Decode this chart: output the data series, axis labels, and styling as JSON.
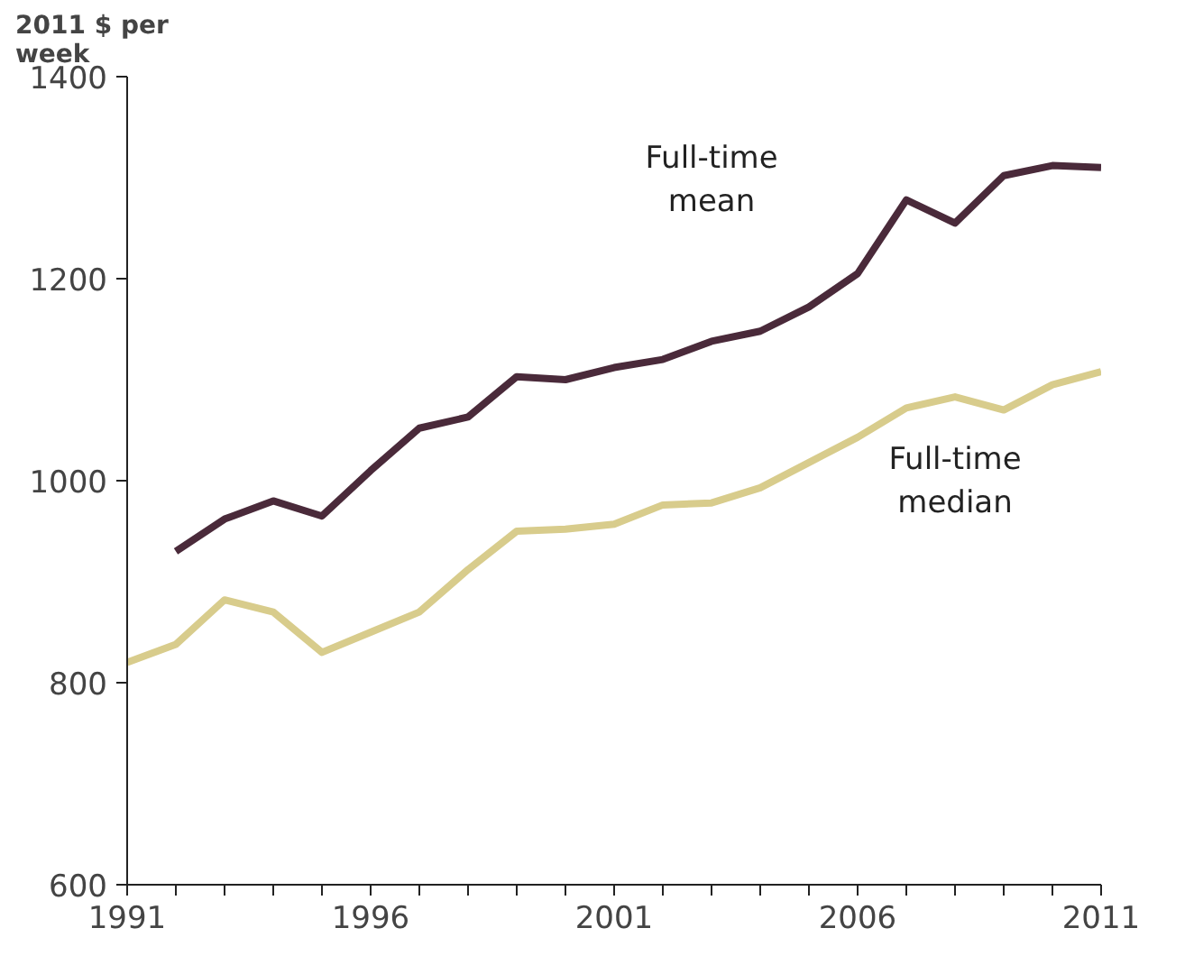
{
  "chart_data": {
    "type": "line",
    "ylabel": "2011 $ per week",
    "x": [
      1991,
      1992,
      1993,
      1994,
      1995,
      1996,
      1997,
      1998,
      1999,
      2000,
      2001,
      2002,
      2003,
      2004,
      2005,
      2006,
      2007,
      2008,
      2009,
      2010,
      2011
    ],
    "series": [
      {
        "name": "Full-time mean",
        "color": "#4a2a3a",
        "values": [
          null,
          930,
          962,
          980,
          965,
          1010,
          1052,
          1063,
          1103,
          1100,
          1112,
          1120,
          1138,
          1148,
          1172,
          1205,
          1278,
          1255,
          1302,
          1312,
          1310
        ]
      },
      {
        "name": "Full-time median",
        "color": "#d8cc8c",
        "values": [
          820,
          838,
          882,
          870,
          830,
          850,
          870,
          912,
          950,
          952,
          957,
          976,
          978,
          993,
          1018,
          1043,
          1072,
          1083,
          1070,
          1095,
          1108
        ]
      }
    ],
    "xlim": [
      1991,
      2011
    ],
    "xticks": [
      1991,
      {
        "value": 1992,
        "label": null
      },
      {
        "value": 1993,
        "label": null
      },
      {
        "value": 1994,
        "label": null
      },
      {
        "value": 1995,
        "label": null
      },
      1996,
      {
        "value": 1997,
        "label": null
      },
      {
        "value": 1998,
        "label": null
      },
      {
        "value": 1999,
        "label": null
      },
      {
        "value": 2000,
        "label": null
      },
      2001,
      {
        "value": 2002,
        "label": null
      },
      {
        "value": 2003,
        "label": null
      },
      {
        "value": 2004,
        "label": null
      },
      {
        "value": 2005,
        "label": null
      },
      2006,
      {
        "value": 2007,
        "label": null
      },
      {
        "value": 2008,
        "label": null
      },
      {
        "value": 2009,
        "label": null
      },
      {
        "value": 2010,
        "label": null
      },
      2011
    ],
    "ylim": [
      600,
      1400
    ],
    "yticks": [
      600,
      800,
      1000,
      1200,
      1400
    ],
    "grid": false,
    "legend": false,
    "marker": "none",
    "line_style": "solid"
  }
}
